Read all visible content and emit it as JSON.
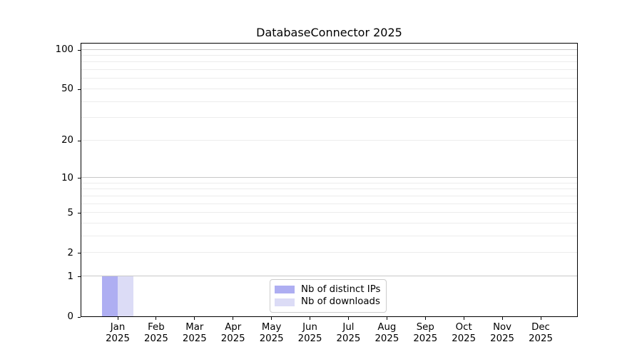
{
  "chart_data": {
    "type": "bar",
    "title": "DatabaseConnector 2025",
    "categories": [
      "Jan 2025",
      "Feb 2025",
      "Mar 2025",
      "Apr 2025",
      "May 2025",
      "Jun 2025",
      "Jul 2025",
      "Aug 2025",
      "Sep 2025",
      "Oct 2025",
      "Nov 2025",
      "Dec 2025"
    ],
    "series": [
      {
        "name": "Nb of distinct IPs",
        "color": "#aeaef2",
        "values": [
          1,
          0,
          0,
          0,
          0,
          0,
          0,
          0,
          0,
          0,
          0,
          0
        ]
      },
      {
        "name": "Nb of downloads",
        "color": "#dcdcf6",
        "values": [
          1,
          0,
          0,
          0,
          0,
          0,
          0,
          0,
          0,
          0,
          0,
          0
        ]
      }
    ],
    "xlabel": "",
    "ylabel": "",
    "yscale": "log10(value+1)",
    "ylim": [
      0,
      112
    ],
    "ytick_labels": [
      0,
      1,
      2,
      5,
      10,
      20,
      50,
      100
    ],
    "major_gridline_values": [
      1,
      10,
      100
    ],
    "minor_gridline_values": [
      2,
      3,
      4,
      5,
      6,
      7,
      8,
      9,
      20,
      30,
      40,
      50,
      60,
      70,
      80,
      90
    ],
    "grid": "horizontal",
    "legend_position": "bottom-center-inside",
    "colors": {
      "major_grid": "#c8c8c8",
      "minor_grid": "#ececec",
      "spine": "#000000",
      "text": "#000000",
      "legend_border": "#cccccc",
      "background": "#ffffff"
    }
  }
}
